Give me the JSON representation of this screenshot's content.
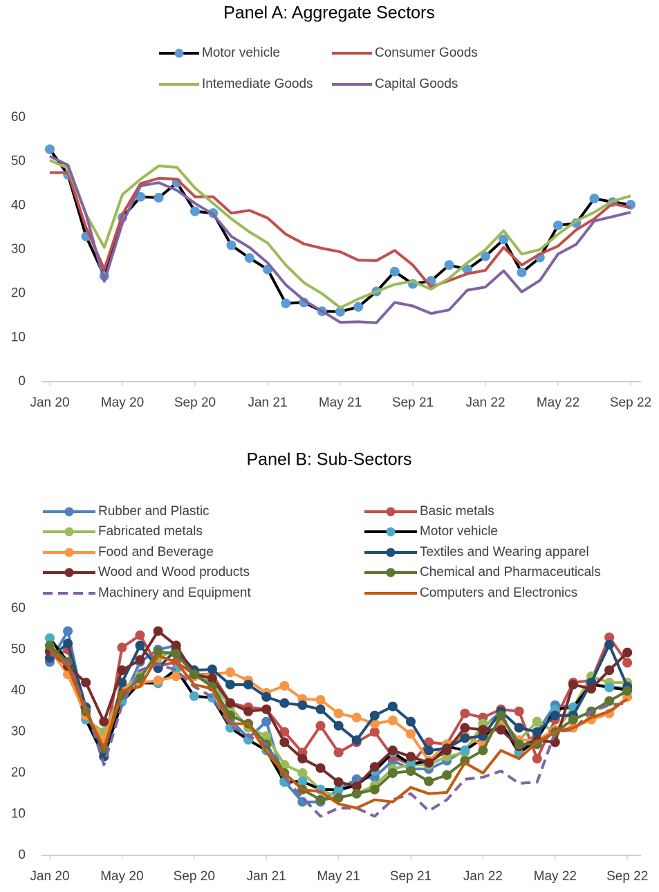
{
  "chart_data": [
    {
      "type": "line",
      "title": "Panel A: Aggregate Sectors",
      "categories": [
        "Jan 20",
        null,
        null,
        null,
        "May 20",
        null,
        null,
        null,
        "Sep 20",
        null,
        null,
        null,
        "Jan 21",
        null,
        null,
        null,
        "May 21",
        null,
        null,
        null,
        "Sep 21",
        null,
        null,
        null,
        "Jan 22",
        null,
        null,
        null,
        "May 22",
        null,
        null,
        null,
        "Sep 22"
      ],
      "ylim": [
        0,
        60
      ],
      "yticks": [
        0,
        10,
        20,
        30,
        40,
        50,
        60
      ],
      "grid": false,
      "series": [
        {
          "name": "Motor vehicle",
          "color": "#000000",
          "marker_color": "#5b9bd5",
          "markers": true,
          "values": [
            52.8,
            47,
            33,
            24,
            37.3,
            42,
            41.8,
            45.2,
            38.7,
            38.3,
            31,
            28.1,
            25.5,
            17.8,
            18,
            16,
            15.9,
            17,
            20.5,
            25,
            22.2,
            22.9,
            26.5,
            25.5,
            28.5,
            32.3,
            24.8,
            28.2,
            35.5,
            36,
            41.6,
            40.8,
            40.2
          ]
        },
        {
          "name": "Consumer Goods",
          "color": "#c0504d",
          "markers": false,
          "values": [
            47.5,
            47.5,
            35,
            25.5,
            38,
            45,
            46.2,
            46,
            42,
            42,
            38.3,
            38.9,
            37.2,
            33.5,
            31.3,
            30.3,
            29.5,
            27.6,
            27.5,
            29.8,
            26.5,
            21.5,
            23,
            24.5,
            25.3,
            30.5,
            26.5,
            29,
            30.8,
            34.5,
            37,
            40.5,
            39.5
          ]
        },
        {
          "name": "Intemediate Goods",
          "color": "#9bbb59",
          "markers": false,
          "values": [
            50.3,
            48.5,
            38,
            30.5,
            42.5,
            46,
            49,
            48.7,
            44,
            40.5,
            37,
            34,
            31.5,
            26.5,
            22.5,
            20,
            16.8,
            18.8,
            20.5,
            22.1,
            22.8,
            21,
            23.5,
            27,
            30,
            34.3,
            29,
            30,
            33.5,
            36.5,
            38.5,
            41,
            42.2
          ]
        },
        {
          "name": "Capital Goods",
          "color": "#8064a2",
          "markers": false,
          "values": [
            51.2,
            49.2,
            38,
            22.8,
            36,
            44.5,
            45.2,
            43.5,
            40.5,
            38,
            33,
            30.5,
            27,
            22,
            18.5,
            16,
            13.5,
            13.6,
            13.4,
            18,
            17.2,
            15.5,
            16.3,
            20.8,
            21.5,
            25.2,
            20.4,
            23,
            29,
            31.2,
            36.5,
            37.5,
            38.5
          ]
        }
      ]
    },
    {
      "type": "line",
      "title": "Panel B: Sub-Sectors",
      "categories": [
        "Jan 20",
        null,
        null,
        null,
        "May 20",
        null,
        null,
        null,
        "Sep 20",
        null,
        null,
        null,
        "Jan 21",
        null,
        null,
        null,
        "May 21",
        null,
        null,
        null,
        "Sep 21",
        null,
        null,
        null,
        "Jan 22",
        null,
        null,
        null,
        "May 22",
        null,
        null,
        null,
        "Sep 22"
      ],
      "ylim": [
        0,
        60
      ],
      "yticks": [
        0,
        10,
        20,
        30,
        40,
        50,
        60
      ],
      "grid": false,
      "series": [
        {
          "name": "Rubber and Plastic",
          "color": "#4f81bd",
          "marker_color": "#4f81bd",
          "markers": true,
          "values": [
            47,
            54.5,
            34,
            24.5,
            37.5,
            47,
            50,
            51,
            44,
            42,
            33,
            28.5,
            32.5,
            18,
            13,
            13,
            16,
            18.5,
            19,
            23,
            21,
            21,
            23,
            25.5,
            31,
            35,
            25,
            30,
            36.5,
            36,
            41.5,
            41,
            40.5
          ]
        },
        {
          "name": "Basic metals",
          "color": "#c0504d",
          "marker_color": "#c0504d",
          "markers": true,
          "values": [
            48,
            50,
            35,
            25,
            50.5,
            53.5,
            46,
            47,
            44,
            44,
            37,
            36,
            35.5,
            30,
            25,
            31.5,
            25,
            27.5,
            30,
            24,
            22,
            27.5,
            27,
            34.5,
            33.5,
            35.5,
            35,
            23.5,
            33,
            42,
            42.5,
            53,
            46.8
          ]
        },
        {
          "name": "Fabricated metals",
          "color": "#9bbb59",
          "marker_color": "#9bbb59",
          "markers": true,
          "values": [
            51,
            46,
            33,
            30,
            40,
            44,
            48,
            50,
            45,
            42,
            36,
            31,
            29,
            22,
            20,
            16,
            14,
            15,
            17,
            21,
            22,
            22,
            24,
            25,
            32,
            33,
            28,
            32.5,
            30,
            36,
            43.5,
            42,
            42
          ]
        },
        {
          "name": "Motor vehicle",
          "color": "#000000",
          "marker_color": "#4bacc6",
          "markers": true,
          "values": [
            52.8,
            47,
            33,
            24,
            37.3,
            42,
            41.8,
            45.2,
            38.7,
            38.3,
            31,
            28.1,
            25.5,
            17.8,
            18,
            16,
            15.9,
            17,
            20.5,
            25,
            22.2,
            22.9,
            26.5,
            25.5,
            28.5,
            32.3,
            24.8,
            28.2,
            35.5,
            36,
            41.6,
            40.8,
            40.2
          ]
        },
        {
          "name": "Food and Beverage",
          "color": "#f79646",
          "marker_color": "#f79646",
          "markers": true,
          "values": [
            50,
            44,
            34,
            28,
            41,
            42,
            42.5,
            43.5,
            43.5,
            44,
            44.5,
            42.5,
            39.5,
            41.2,
            38,
            37.8,
            34.5,
            33.5,
            32,
            32.8,
            29.5,
            23,
            27,
            29,
            27,
            33,
            28,
            28,
            30.5,
            31,
            33,
            34.5,
            38.5
          ]
        },
        {
          "name": "Textiles and Wearing apparel",
          "color": "#1f4e79",
          "marker_color": "#1f4e79",
          "markers": true,
          "values": [
            48,
            51.5,
            36,
            24,
            42,
            51,
            45.5,
            50,
            45,
            45.2,
            41.5,
            41.5,
            38.5,
            37,
            36.5,
            35.5,
            31.5,
            28,
            34,
            36.2,
            32.5,
            25.5,
            26,
            28.5,
            29,
            35,
            31,
            30,
            34,
            34,
            42,
            51.2,
            41
          ]
        },
        {
          "name": "Wood and Wood products",
          "color": "#772c2a",
          "marker_color": "#772c2a",
          "markers": true,
          "values": [
            49.5,
            46,
            42,
            32.5,
            45,
            47.5,
            54.5,
            51,
            44,
            43,
            37,
            35,
            35.5,
            27.5,
            23.5,
            21.2,
            17.8,
            16.8,
            21.5,
            25.5,
            24,
            22.5,
            25.5,
            31,
            30.5,
            30.5,
            26.5,
            28,
            27.5,
            41.5,
            40.5,
            45,
            49.3
          ]
        },
        {
          "name": "Chemical and Pharmaceuticals",
          "color": "#5f7530",
          "marker_color": "#5f7530",
          "markers": true,
          "values": [
            51,
            47,
            35,
            26,
            39,
            43,
            49.5,
            49,
            44,
            41,
            34,
            32,
            27,
            20,
            16,
            13.5,
            14,
            15,
            16,
            20,
            20.5,
            18,
            19.5,
            23,
            25.5,
            34,
            27,
            27,
            30,
            33,
            35,
            37.5,
            40
          ]
        },
        {
          "name": "Machinery and Equipment",
          "color": "#8064a2",
          "markers": false,
          "dash": true,
          "values": [
            49,
            47,
            36,
            22,
            36.5,
            45,
            46.5,
            45,
            41,
            38.5,
            31.5,
            29,
            27,
            19,
            14,
            9.5,
            11.5,
            11.5,
            9.5,
            13.5,
            15,
            10.8,
            13.5,
            18.5,
            19,
            20.5,
            17.5,
            17.8,
            30,
            30.5,
            35,
            36.5,
            37
          ]
        },
        {
          "name": "Computers and Electronics",
          "color": "#c55a11",
          "markers": false,
          "values": [
            50,
            46,
            35,
            26,
            40,
            41,
            48.5,
            47,
            41.5,
            40.5,
            32,
            32,
            25,
            20,
            16,
            15.5,
            12.5,
            11.5,
            13.5,
            13,
            16.5,
            15,
            15.3,
            22.5,
            20,
            25.5,
            23.5,
            27.5,
            30,
            31,
            33.5,
            35,
            38
          ]
        }
      ]
    }
  ]
}
